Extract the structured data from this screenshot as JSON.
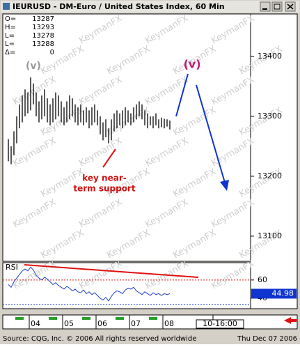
{
  "window_title": "IEURUSD - DM-Euro / United States Index, 60 Min",
  "info": [
    {
      "label": "O=",
      "value": 13287
    },
    {
      "label": "H=",
      "value": 13293
    },
    {
      "label": "L=",
      "value": 13278
    },
    {
      "label": "L=",
      "value": 13288
    },
    {
      "label": "Δ=",
      "value": 0
    }
  ],
  "watermark": "KeymanFX",
  "footer": {
    "source": "Source: CQG, Inc. © 2006 All rights reserved worldwide",
    "date": "Thu Dec 07 2006"
  },
  "chart_data": [
    {
      "type": "bar-range",
      "color": "#000000",
      "annotations": {
        "wave_left": "(v)",
        "wave_right": "(v)",
        "support": [
          "key near-",
          "term support"
        ]
      },
      "x": [
        2,
        3,
        4,
        5,
        6,
        7,
        8,
        9,
        10,
        11,
        12,
        13,
        14,
        15,
        16,
        17,
        18,
        19,
        20,
        21,
        22,
        23,
        24,
        25,
        26,
        27,
        28,
        29,
        30,
        31,
        32,
        33,
        34,
        35,
        36,
        37,
        38,
        39,
        40,
        41,
        42,
        43,
        44,
        45,
        46,
        47,
        48,
        49,
        50,
        51,
        52,
        53,
        54,
        55,
        56,
        57,
        58,
        59,
        60
      ],
      "high": [
        13262,
        13250,
        13275,
        13300,
        13320,
        13335,
        13345,
        13340,
        13365,
        13355,
        13340,
        13325,
        13335,
        13345,
        13330,
        13320,
        13330,
        13340,
        13335,
        13325,
        13315,
        13325,
        13335,
        13330,
        13320,
        13315,
        13320,
        13310,
        13315,
        13310,
        13315,
        13320,
        13310,
        13300,
        13290,
        13295,
        13280,
        13295,
        13305,
        13310,
        13305,
        13310,
        13315,
        13310,
        13305,
        13315,
        13320,
        13325,
        13320,
        13310,
        13305,
        13300,
        13300,
        13305,
        13295,
        13298,
        13296,
        13295,
        13293
      ],
      "low": [
        13225,
        13220,
        13235,
        13255,
        13280,
        13290,
        13300,
        13305,
        13310,
        13320,
        13300,
        13290,
        13295,
        13300,
        13290,
        13285,
        13290,
        13295,
        13300,
        13290,
        13285,
        13290,
        13295,
        13300,
        13290,
        13285,
        13290,
        13285,
        13290,
        13280,
        13285,
        13290,
        13285,
        13270,
        13260,
        13265,
        13255,
        13260,
        13275,
        13280,
        13285,
        13280,
        13285,
        13290,
        13285,
        13290,
        13295,
        13300,
        13295,
        13285,
        13280,
        13285,
        13280,
        13285,
        13280,
        13282,
        13280,
        13283,
        13278
      ],
      "xlim": [
        0,
        89
      ],
      "xticks": [
        {
          "value": 12,
          "label": "04"
        },
        {
          "value": 24,
          "label": "05"
        },
        {
          "value": 36,
          "label": "06"
        },
        {
          "value": 48,
          "label": "07"
        },
        {
          "value": 60,
          "label": "08"
        },
        {
          "value": 78,
          "label": "10-16:00"
        }
      ],
      "ylim": [
        13058,
        13471
      ],
      "yticks": [
        13100,
        13200,
        13300,
        13400
      ]
    },
    {
      "type": "line",
      "title": "RSI",
      "color": "#1f3fc0",
      "x": [
        2,
        3,
        4,
        5,
        6,
        7,
        8,
        9,
        10,
        11,
        12,
        13,
        14,
        15,
        16,
        17,
        18,
        19,
        20,
        21,
        22,
        23,
        24,
        25,
        26,
        27,
        28,
        29,
        30,
        31,
        32,
        33,
        34,
        35,
        36,
        37,
        38,
        39,
        40,
        41,
        42,
        43,
        44,
        45,
        46,
        47,
        48,
        49,
        50,
        51,
        52,
        53,
        54,
        55,
        56,
        57,
        58,
        59,
        60
      ],
      "values": [
        55,
        52,
        58,
        62,
        66,
        70,
        72,
        70,
        74,
        71,
        65,
        62,
        60,
        63,
        61,
        58,
        55,
        57,
        54,
        52,
        50,
        53,
        51,
        48,
        50,
        47,
        46,
        49,
        45,
        47,
        44,
        46,
        43,
        40,
        38,
        41,
        37,
        42,
        46,
        48,
        47,
        45,
        49,
        51,
        50,
        52,
        48,
        46,
        44,
        47,
        45,
        43,
        46,
        44,
        45,
        43,
        45,
        44,
        44.98
      ],
      "xlim": [
        0,
        89
      ],
      "ylim": [
        28.5,
        79
      ],
      "yticks": [
        40,
        60
      ],
      "levels": [
        60,
        33
      ]
    }
  ]
}
